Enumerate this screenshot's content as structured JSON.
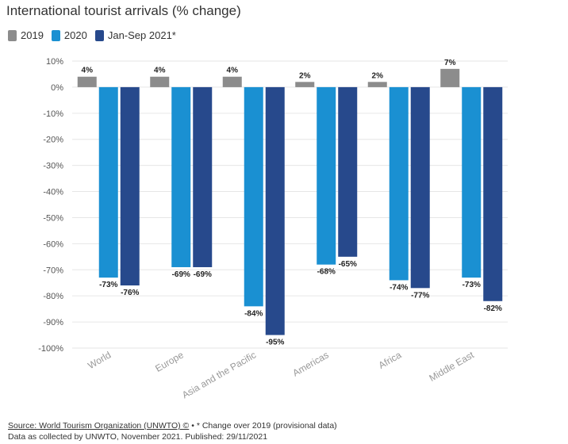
{
  "chart_data": {
    "type": "bar",
    "title": "International tourist arrivals (% change)",
    "categories": [
      "World",
      "Europe",
      "Asia and the Pacific",
      "Americas",
      "Africa",
      "Middle East"
    ],
    "series": [
      {
        "name": "2019",
        "color": "#8c8c8c",
        "values": [
          4,
          4,
          4,
          2,
          2,
          7
        ],
        "labels": [
          "4%",
          "4%",
          "4%",
          "2%",
          "2%",
          "7%"
        ]
      },
      {
        "name": "2020",
        "color": "#1a90d2",
        "values": [
          -73,
          -69,
          -84,
          -68,
          -74,
          -73
        ],
        "labels": [
          "-73%",
          "-69%",
          "-84%",
          "-68%",
          "-74%",
          "-73%"
        ]
      },
      {
        "name": "Jan-Sep 2021*",
        "color": "#27498c",
        "values": [
          -76,
          -69,
          -95,
          -65,
          -77,
          -82
        ],
        "labels": [
          "-76%",
          "-69%",
          "-95%",
          "-65%",
          "-77%",
          "-82%"
        ]
      }
    ],
    "ylim": [
      -100,
      10
    ],
    "yticks": [
      10,
      0,
      -10,
      -20,
      -30,
      -40,
      -50,
      -60,
      -70,
      -80,
      -90,
      -100
    ],
    "ytick_labels": [
      "10%",
      "0%",
      "-10%",
      "-20%",
      "-30%",
      "-40%",
      "-50%",
      "-60%",
      "-70%",
      "-80%",
      "-90%",
      "-100%"
    ],
    "xlabel": "",
    "ylabel": "",
    "grid": true,
    "legend": "top-left"
  },
  "footer": {
    "source_link": "Source: World Tourism Organization (UNWTO) ©",
    "source_note": " • * Change over 2019 (provisional data)",
    "line2": "Data as collected by UNWTO, November 2021. Published: 29/11/2021"
  }
}
